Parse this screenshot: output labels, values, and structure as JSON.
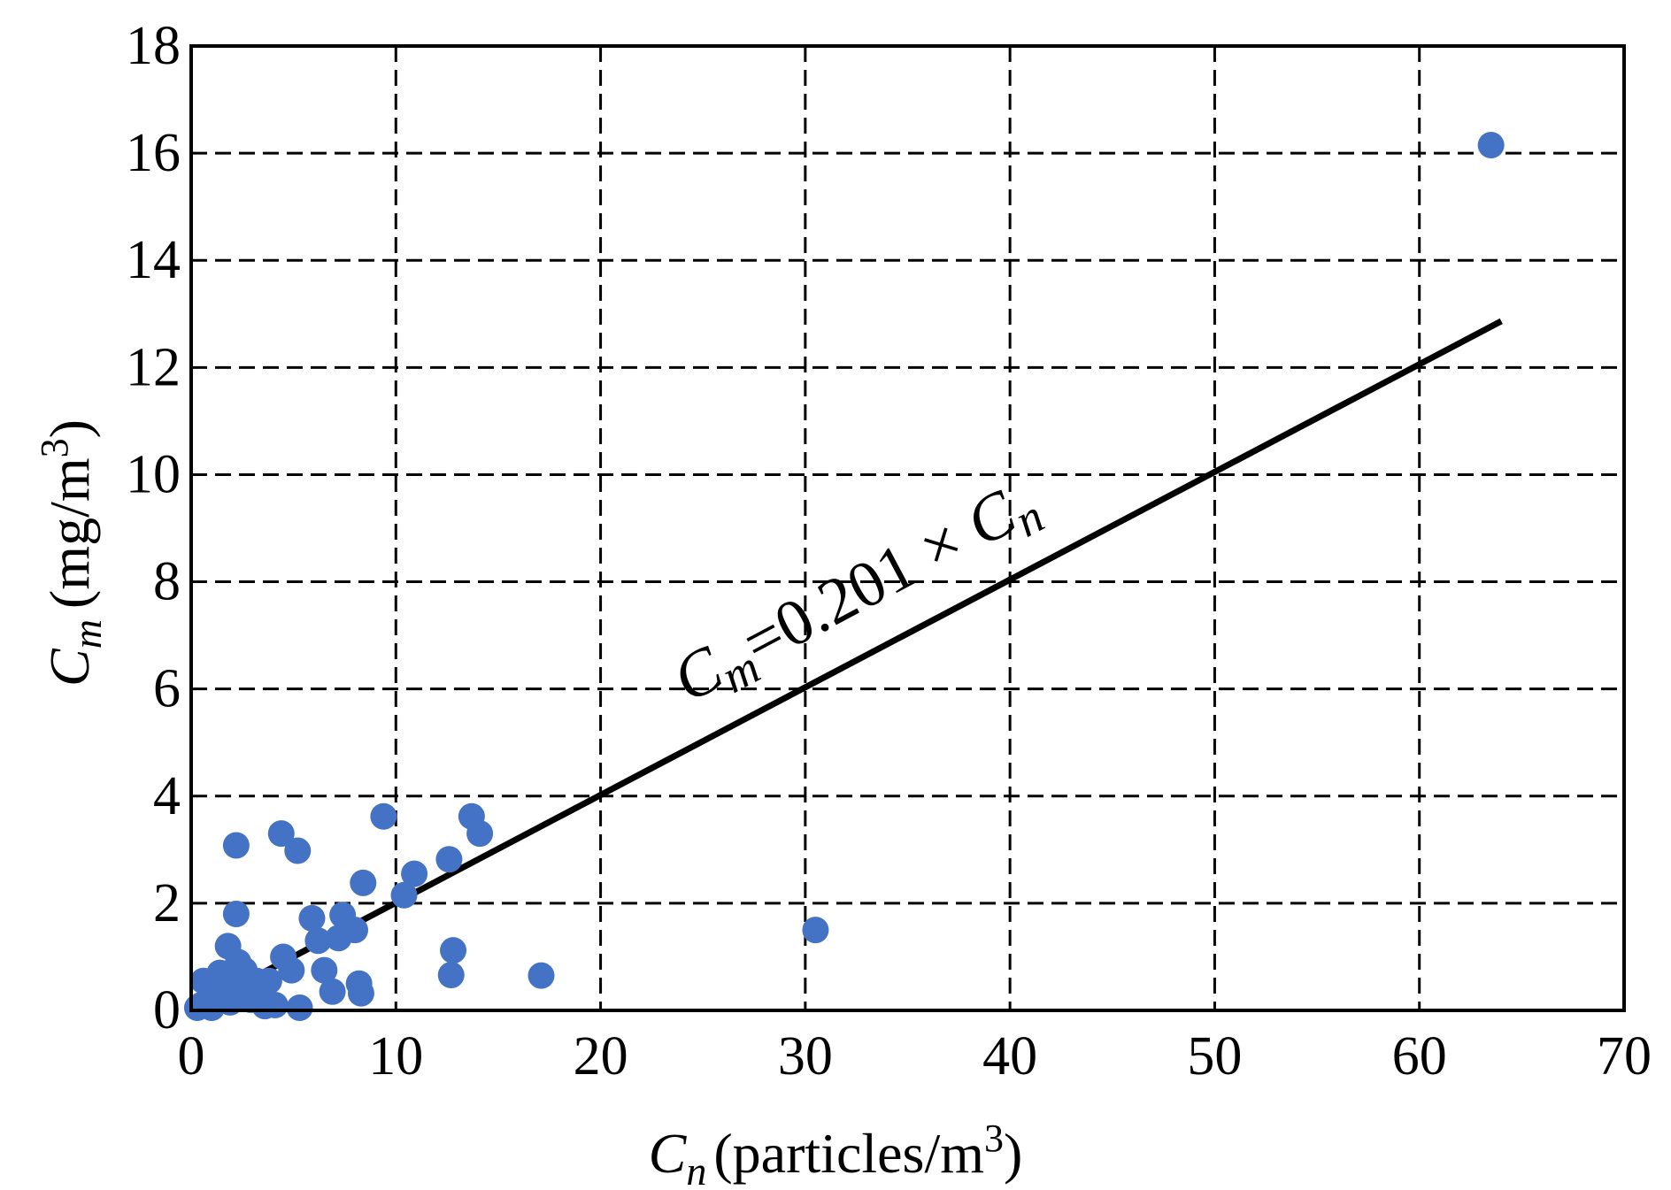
{
  "chart_data": {
    "type": "scatter",
    "xlabel": {
      "symbol": "C",
      "sub": "n",
      "text": "(particles/m",
      "sup": "3",
      "close": ")"
    },
    "ylabel": {
      "symbol": "C",
      "sub": "m",
      "text": "(mg/m",
      "sup": "3",
      "close": ")"
    },
    "xlim": [
      0,
      70
    ],
    "ylim": [
      0,
      18
    ],
    "xticks": [
      0,
      10,
      20,
      30,
      40,
      50,
      60,
      70
    ],
    "yticks": [
      0,
      2,
      4,
      6,
      8,
      10,
      12,
      14,
      16,
      18
    ],
    "grid": true,
    "grid_style": "dashed",
    "marker_color": "#4472C4",
    "line_color": "#000000",
    "annotation": {
      "lhs_symbol": "C",
      "lhs_sub": "m",
      "rhs_text": "=0.201 × ",
      "rhs_symbol": "C",
      "rhs_sub": "n"
    },
    "fit_line": {
      "slope": 0.201,
      "x": [
        0.2,
        64
      ]
    },
    "points": [
      [
        63.5,
        16.15
      ],
      [
        30.5,
        1.5
      ],
      [
        17.1,
        0.65
      ],
      [
        13.7,
        3.62
      ],
      [
        14.1,
        3.3
      ],
      [
        12.6,
        2.82
      ],
      [
        12.8,
        1.12
      ],
      [
        12.7,
        0.66
      ],
      [
        10.9,
        2.55
      ],
      [
        10.4,
        2.15
      ],
      [
        9.4,
        3.62
      ],
      [
        8.4,
        2.38
      ],
      [
        8.0,
        1.5
      ],
      [
        7.4,
        1.78
      ],
      [
        7.2,
        1.35
      ],
      [
        5.9,
        1.72
      ],
      [
        6.2,
        1.3
      ],
      [
        8.2,
        0.5
      ],
      [
        8.3,
        0.32
      ],
      [
        6.5,
        0.75
      ],
      [
        6.9,
        0.35
      ],
      [
        5.3,
        0.05
      ],
      [
        4.4,
        3.3
      ],
      [
        5.2,
        2.98
      ],
      [
        2.2,
        3.08
      ],
      [
        2.2,
        1.8
      ],
      [
        1.8,
        1.2
      ],
      [
        2.3,
        0.9
      ],
      [
        3.2,
        0.55
      ],
      [
        4.5,
        1.0
      ],
      [
        4.9,
        0.75
      ],
      [
        4.1,
        0.1
      ],
      [
        3.8,
        0.55
      ],
      [
        3.4,
        0.3
      ],
      [
        2.9,
        0.2
      ],
      [
        2.0,
        0.45
      ],
      [
        1.9,
        0.15
      ],
      [
        1.4,
        0.7
      ],
      [
        1.1,
        0.42
      ],
      [
        0.9,
        0.2
      ],
      [
        0.6,
        0.55
      ],
      [
        0.5,
        0.1
      ],
      [
        0.3,
        0.05
      ],
      [
        1.0,
        0.05
      ],
      [
        1.3,
        0.35
      ],
      [
        2.6,
        0.75
      ],
      [
        3.6,
        0.08
      ],
      [
        2.7,
        0.45
      ]
    ]
  }
}
